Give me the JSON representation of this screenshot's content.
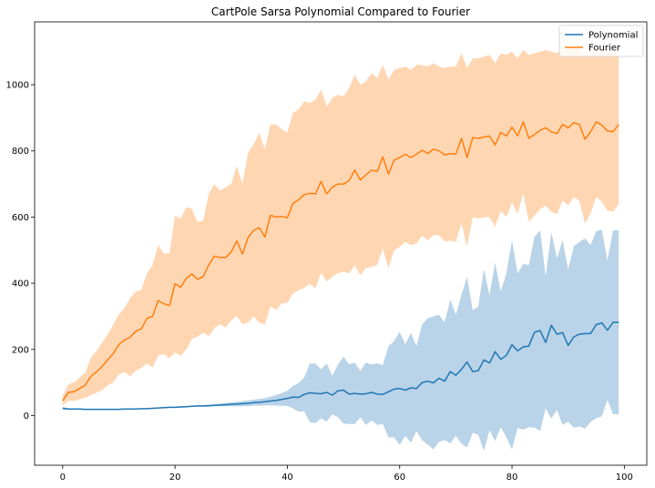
{
  "chart_data": {
    "type": "line",
    "title": "CartPole Sarsa Polynomial Compared to Fourier",
    "xlabel": "",
    "ylabel": "",
    "xlim": [
      -5,
      104
    ],
    "ylim": [
      -150,
      1190
    ],
    "xticks": [
      0,
      20,
      40,
      60,
      80,
      100
    ],
    "yticks": [
      0,
      200,
      400,
      600,
      800,
      1000
    ],
    "grid": false,
    "legend_position": "top-right",
    "x": [
      0,
      1,
      2,
      3,
      4,
      5,
      6,
      7,
      8,
      9,
      10,
      11,
      12,
      13,
      14,
      15,
      16,
      17,
      18,
      19,
      20,
      21,
      22,
      23,
      24,
      25,
      26,
      27,
      28,
      29,
      30,
      31,
      32,
      33,
      34,
      35,
      36,
      37,
      38,
      39,
      40,
      41,
      42,
      43,
      44,
      45,
      46,
      47,
      48,
      49,
      50,
      51,
      52,
      53,
      54,
      55,
      56,
      57,
      58,
      59,
      60,
      61,
      62,
      63,
      64,
      65,
      66,
      67,
      68,
      69,
      70,
      71,
      72,
      73,
      74,
      75,
      76,
      77,
      78,
      79,
      80,
      81,
      82,
      83,
      84,
      85,
      86,
      87,
      88,
      89,
      90,
      91,
      92,
      93,
      94,
      95,
      96,
      97,
      98,
      99
    ],
    "series": [
      {
        "name": "Polynomial",
        "color": "#1f77b4",
        "band_color": "#b9d3e8",
        "values": [
          22,
          20,
          20,
          20,
          19,
          19,
          19,
          19,
          19,
          19,
          19,
          20,
          20,
          20,
          21,
          21,
          22,
          23,
          24,
          25,
          25,
          26,
          27,
          28,
          29,
          29,
          30,
          31,
          32,
          33,
          34,
          35,
          36,
          37,
          39,
          40,
          42,
          44,
          46,
          49,
          52,
          56,
          55,
          64,
          69,
          67,
          66,
          70,
          62,
          75,
          77,
          65,
          67,
          65,
          66,
          70,
          65,
          64,
          72,
          80,
          82,
          77,
          84,
          82,
          100,
          104,
          99,
          113,
          104,
          133,
          122,
          140,
          162,
          133,
          136,
          168,
          159,
          193,
          170,
          182,
          214,
          196,
          208,
          210,
          252,
          257,
          221,
          273,
          246,
          251,
          212,
          238,
          246,
          248,
          248,
          275,
          280,
          258,
          282,
          282
        ],
        "upper": [
          26,
          22,
          21,
          21,
          20,
          20,
          20,
          20,
          20,
          20,
          20,
          21,
          21,
          21,
          22,
          22,
          23,
          24,
          25,
          26,
          27,
          28,
          29,
          30,
          31,
          32,
          33,
          34,
          36,
          38,
          40,
          42,
          44,
          46,
          48,
          50,
          53,
          57,
          62,
          68,
          75,
          90,
          98,
          115,
          158,
          157,
          140,
          158,
          120,
          155,
          178,
          155,
          160,
          135,
          160,
          155,
          158,
          153,
          210,
          225,
          253,
          215,
          250,
          210,
          275,
          295,
          300,
          305,
          282,
          350,
          305,
          365,
          420,
          318,
          330,
          442,
          363,
          463,
          375,
          430,
          530,
          430,
          458,
          455,
          540,
          560,
          420,
          555,
          475,
          530,
          442,
          512,
          525,
          535,
          515,
          558,
          562,
          468,
          560,
          560
        ],
        "lower": [
          18,
          18,
          19,
          19,
          18,
          18,
          18,
          18,
          18,
          18,
          18,
          19,
          19,
          19,
          20,
          20,
          21,
          22,
          23,
          24,
          23,
          24,
          25,
          26,
          27,
          26,
          27,
          28,
          28,
          28,
          28,
          28,
          28,
          28,
          30,
          30,
          31,
          31,
          30,
          30,
          29,
          22,
          12,
          13,
          -20,
          -23,
          -8,
          -18,
          4,
          -5,
          -24,
          -25,
          -26,
          -5,
          -28,
          -15,
          -28,
          -25,
          -66,
          -65,
          -89,
          -61,
          -82,
          -46,
          -75,
          -87,
          -102,
          -79,
          -74,
          -84,
          -61,
          -85,
          -96,
          -52,
          -58,
          -106,
          -45,
          -77,
          -35,
          -66,
          -102,
          -38,
          -42,
          -35,
          -36,
          -46,
          22,
          -9,
          17,
          -28,
          -18,
          -36,
          -33,
          -39,
          -19,
          -8,
          -2,
          48,
          4,
          4
        ]
      },
      {
        "name": "Fourier",
        "color": "#ff7f0e",
        "band_color": "#ffd6b2",
        "values": [
          45,
          70,
          72,
          82,
          92,
          118,
          132,
          148,
          168,
          188,
          215,
          228,
          237,
          255,
          262,
          294,
          300,
          348,
          338,
          332,
          398,
          388,
          415,
          428,
          412,
          420,
          455,
          482,
          478,
          478,
          494,
          528,
          488,
          538,
          560,
          568,
          540,
          605,
          600,
          602,
          598,
          642,
          652,
          668,
          672,
          670,
          708,
          670,
          690,
          700,
          700,
          710,
          742,
          712,
          728,
          742,
          738,
          782,
          730,
          772,
          780,
          790,
          780,
          790,
          802,
          792,
          805,
          800,
          788,
          792,
          790,
          838,
          780,
          840,
          838,
          842,
          845,
          818,
          856,
          845,
          872,
          845,
          888,
          838,
          850,
          862,
          870,
          858,
          852,
          880,
          870,
          885,
          880,
          835,
          858,
          888,
          878,
          860,
          858,
          880
        ],
        "upper": [
          60,
          95,
          100,
          115,
          130,
          175,
          195,
          220,
          245,
          275,
          305,
          325,
          355,
          375,
          380,
          430,
          455,
          515,
          490,
          490,
          605,
          595,
          630,
          625,
          585,
          590,
          670,
          700,
          680,
          690,
          700,
          755,
          700,
          795,
          820,
          855,
          805,
          880,
          880,
          865,
          855,
          915,
          925,
          950,
          945,
          955,
          985,
          935,
          960,
          970,
          965,
          990,
          1030,
          1000,
          1010,
          1035,
          1020,
          1060,
          1015,
          1045,
          1050,
          1055,
          1045,
          1060,
          1060,
          1055,
          1065,
          1055,
          1050,
          1055,
          1055,
          1095,
          1050,
          1080,
          1080,
          1085,
          1090,
          1065,
          1095,
          1090,
          1100,
          1080,
          1105,
          1090,
          1095,
          1100,
          1105,
          1100,
          1095,
          1110,
          1105,
          1110,
          1110,
          1090,
          1105,
          1115,
          1110,
          1100,
          1100,
          1120
        ],
        "lower": [
          30,
          45,
          44,
          49,
          54,
          61,
          69,
          76,
          91,
          101,
          125,
          131,
          119,
          135,
          144,
          158,
          145,
          181,
          186,
          174,
          191,
          181,
          200,
          231,
          239,
          250,
          240,
          264,
          276,
          266,
          288,
          301,
          276,
          281,
          300,
          281,
          275,
          330,
          320,
          339,
          341,
          369,
          379,
          386,
          399,
          385,
          431,
          405,
          420,
          430,
          435,
          430,
          454,
          424,
          446,
          449,
          456,
          504,
          445,
          499,
          510,
          525,
          515,
          520,
          544,
          529,
          545,
          545,
          526,
          529,
          525,
          581,
          510,
          600,
          596,
          599,
          600,
          571,
          617,
          600,
          644,
          610,
          671,
          586,
          605,
          624,
          635,
          616,
          609,
          650,
          635,
          660,
          650,
          580,
          611,
          661,
          646,
          620,
          616,
          640
        ]
      }
    ]
  }
}
